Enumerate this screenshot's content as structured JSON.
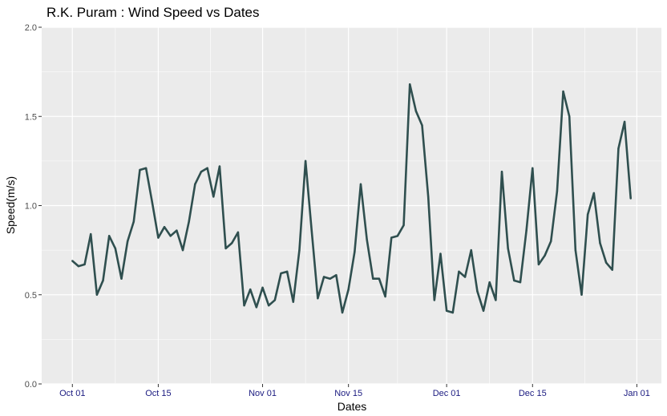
{
  "chart_data": {
    "type": "line",
    "title": "R.K. Puram : Wind Speed vs Dates",
    "xlabel": "Dates",
    "ylabel": "Speed(m/s)",
    "ylim": [
      0,
      2
    ],
    "y_ticks": [
      0.0,
      0.5,
      1.0,
      1.5,
      2.0
    ],
    "y_tick_labels": [
      "0.0",
      "0.5",
      "1.0",
      "1.5",
      "2.0"
    ],
    "x_tick_dates": [
      "2017-10-01",
      "2017-10-15",
      "2017-11-01",
      "2017-11-15",
      "2017-12-01",
      "2017-12-15",
      "2018-01-01"
    ],
    "x_tick_labels": [
      "Oct 01",
      "Oct 15",
      "Nov 01",
      "Nov 15",
      "Dec 01",
      "Dec 15",
      "Jan 01"
    ],
    "xlim": [
      "2017-09-26",
      "2018-01-05"
    ],
    "grid": true,
    "colors": {
      "line": "#2f4f4f",
      "panel": "#ebebeb",
      "grid": "#ffffff",
      "x_tick_text": "#1a1a80",
      "y_tick_text": "#4d4d4d"
    },
    "series": [
      {
        "start_date": "2017-10-01",
        "values": [
          0.69,
          0.66,
          0.67,
          0.84,
          0.5,
          0.58,
          0.83,
          0.76,
          0.59,
          0.8,
          0.91,
          1.2,
          1.21,
          1.02,
          0.82,
          0.88,
          0.83,
          0.86,
          0.75,
          0.91,
          1.12,
          1.19,
          1.21,
          1.05,
          1.22,
          0.76,
          0.79,
          0.85,
          0.44,
          0.53,
          0.43,
          0.54,
          0.44,
          0.47,
          0.62,
          0.63,
          0.46,
          0.75,
          1.25,
          0.86,
          0.48,
          0.6,
          0.59,
          0.61,
          0.4,
          0.53,
          0.74,
          1.12,
          0.81,
          0.59,
          0.59,
          0.49,
          0.82,
          0.83,
          0.89,
          1.68,
          1.53,
          1.45,
          1.05,
          0.47,
          0.73,
          0.41,
          0.4,
          0.63,
          0.6,
          0.75,
          0.52,
          0.41,
          0.57,
          0.47,
          1.19,
          0.76,
          0.58,
          0.57,
          0.86,
          1.21,
          0.67,
          0.72,
          0.8,
          1.08,
          1.64,
          1.5,
          0.75,
          0.5,
          0.95,
          1.07,
          0.79,
          0.68,
          0.64,
          1.32,
          1.47,
          1.04
        ]
      }
    ]
  }
}
